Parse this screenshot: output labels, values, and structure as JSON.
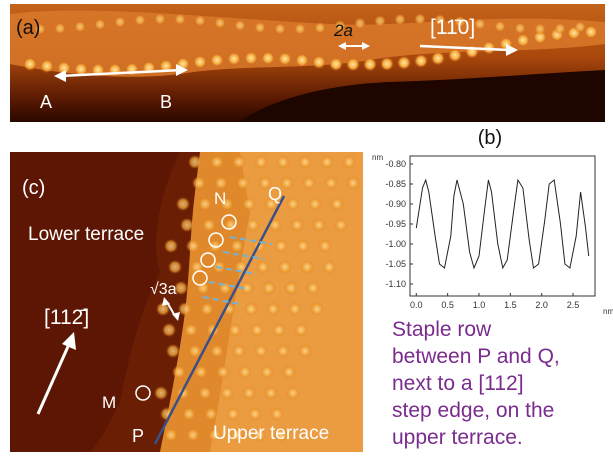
{
  "panel_a": {
    "label": "(a)",
    "marker_a": "A",
    "marker_b": "B",
    "spacing_label": "2a",
    "direction_label": "[11̄0]"
  },
  "panel_c": {
    "label": "(c)",
    "lower_terrace": "Lower terrace",
    "upper_terrace": "Upper terrace",
    "spacing_label": "√3a",
    "direction_label": "[112̄]",
    "marker_n": "N",
    "marker_q": "Q",
    "marker_m": "M",
    "marker_p": "P"
  },
  "panel_b": {
    "label": "(b)"
  },
  "chart_data": {
    "type": "line",
    "title": "(b)",
    "xlabel": "nm",
    "ylabel": "nm",
    "xlim": [
      -0.1,
      2.85
    ],
    "ylim": [
      -1.13,
      -0.78
    ],
    "xticks": [
      "0.0",
      "0.5",
      "1.0",
      "1.5",
      "2.0",
      "2.5"
    ],
    "yticks": [
      "-0.80",
      "-0.85",
      "-0.90",
      "-0.95",
      "-1.00",
      "-1.05",
      "-1.10"
    ],
    "series": [
      {
        "x": [
          0.0,
          0.1,
          0.15,
          0.2,
          0.3,
          0.37,
          0.45,
          0.55,
          0.6,
          0.65,
          0.75,
          0.85,
          0.92,
          1.0,
          1.1,
          1.15,
          1.2,
          1.3,
          1.38,
          1.45,
          1.55,
          1.62,
          1.7,
          1.8,
          1.87,
          1.95,
          2.05,
          2.12,
          2.2,
          2.3,
          2.37,
          2.45,
          2.55,
          2.62,
          2.7,
          2.75
        ],
        "y": [
          -0.96,
          -0.86,
          -0.84,
          -0.87,
          -0.98,
          -1.05,
          -1.06,
          -0.98,
          -0.88,
          -0.84,
          -0.9,
          -1.02,
          -1.06,
          -1.03,
          -0.9,
          -0.84,
          -0.87,
          -1.0,
          -1.06,
          -1.04,
          -0.92,
          -0.84,
          -0.86,
          -0.99,
          -1.06,
          -1.05,
          -0.94,
          -0.85,
          -0.84,
          -0.95,
          -1.05,
          -1.06,
          -0.98,
          -0.87,
          -0.96,
          -1.03
        ]
      }
    ]
  },
  "caption": {
    "line1": "Staple row",
    "line2": "between P and Q,",
    "line3": "next to a [112]",
    "line4": "step edge, on the",
    "line5": "upper terrace."
  }
}
